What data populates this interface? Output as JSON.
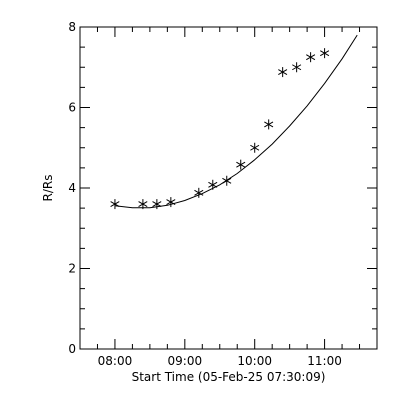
{
  "chart_data": {
    "type": "scatter",
    "title": "",
    "xlabel": "Start Time (05-Feb-25 07:30:09)",
    "ylabel": "R/Rs",
    "x_unit": "hours",
    "xlim": [
      "07:30",
      "11:45"
    ],
    "ylim": [
      0,
      8
    ],
    "x_ticks": [
      "08:00",
      "09:00",
      "10:00",
      "11:00"
    ],
    "y_ticks": [
      0,
      2,
      4,
      6,
      8
    ],
    "x_minor_ticks_per_major": 4,
    "y_minor_ticks_per_major": 4,
    "grid": false,
    "legend": "none",
    "marker": "asterisk",
    "points": [
      {
        "x": "08:00",
        "y": 3.6
      },
      {
        "x": "08:24",
        "y": 3.6
      },
      {
        "x": "08:36",
        "y": 3.6
      },
      {
        "x": "08:48",
        "y": 3.65
      },
      {
        "x": "09:12",
        "y": 3.88
      },
      {
        "x": "09:24",
        "y": 4.08
      },
      {
        "x": "09:36",
        "y": 4.18
      },
      {
        "x": "09:48",
        "y": 4.58
      },
      {
        "x": "10:00",
        "y": 5.0
      },
      {
        "x": "10:12",
        "y": 5.58
      },
      {
        "x": "10:24",
        "y": 6.88
      },
      {
        "x": "10:36",
        "y": 7.0
      },
      {
        "x": "10:48",
        "y": 7.25
      },
      {
        "x": "11:00",
        "y": 7.35
      }
    ],
    "fit_line": [
      {
        "x": "08:00",
        "y": 3.56
      },
      {
        "x": "08:15",
        "y": 3.51
      },
      {
        "x": "08:30",
        "y": 3.51
      },
      {
        "x": "08:45",
        "y": 3.57
      },
      {
        "x": "09:00",
        "y": 3.69
      },
      {
        "x": "09:15",
        "y": 3.86
      },
      {
        "x": "09:30",
        "y": 4.08
      },
      {
        "x": "09:45",
        "y": 4.36
      },
      {
        "x": "10:00",
        "y": 4.7
      },
      {
        "x": "10:15",
        "y": 5.09
      },
      {
        "x": "10:30",
        "y": 5.54
      },
      {
        "x": "10:45",
        "y": 6.04
      },
      {
        "x": "11:00",
        "y": 6.6
      },
      {
        "x": "11:15",
        "y": 7.21
      },
      {
        "x": "11:28",
        "y": 7.8
      }
    ],
    "colors": {
      "axes": "#000000",
      "markers": "#000000",
      "line": "#000000",
      "background": "#ffffff"
    }
  }
}
